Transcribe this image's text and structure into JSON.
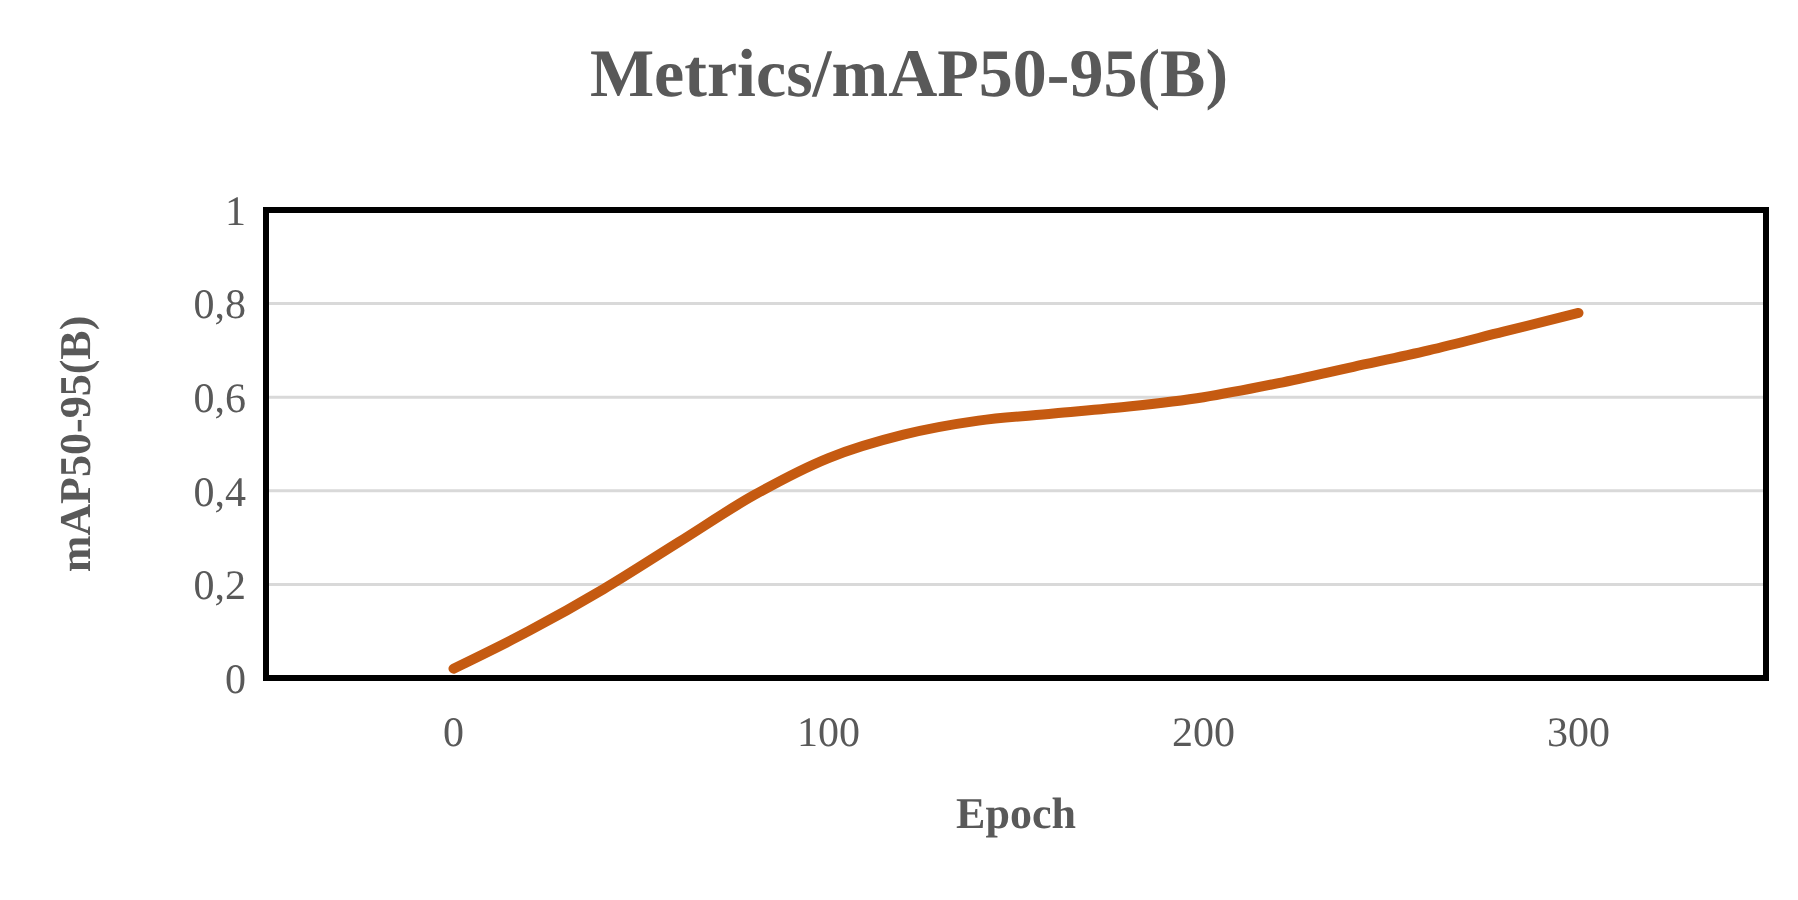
{
  "chart_data": {
    "type": "line",
    "title": "Metrics/mAP50-95(B)",
    "xlabel": "Epoch",
    "ylabel": "mAP50-95(B)",
    "x": [
      0,
      20,
      40,
      60,
      80,
      100,
      120,
      140,
      160,
      180,
      200,
      220,
      240,
      260,
      280,
      300
    ],
    "series": [
      {
        "color": "#c55a11",
        "values": [
          0.02,
          0.1,
          0.19,
          0.29,
          0.39,
          0.47,
          0.52,
          0.55,
          0.565,
          0.58,
          0.6,
          0.63,
          0.665,
          0.7,
          0.74,
          0.78
        ]
      }
    ],
    "xlim": [
      -50,
      350
    ],
    "xticks": [
      0,
      100,
      200,
      300
    ],
    "ylim": [
      0,
      1
    ],
    "yticks": [
      0,
      {
        "value": 0.2,
        "label": "0,2"
      },
      {
        "value": 0.4,
        "label": "0,4"
      },
      {
        "value": 0.6,
        "label": "0,6"
      },
      {
        "value": 0.8,
        "label": "0,8"
      },
      1
    ],
    "grid": "y",
    "marker": "none",
    "line_style": "solid"
  }
}
